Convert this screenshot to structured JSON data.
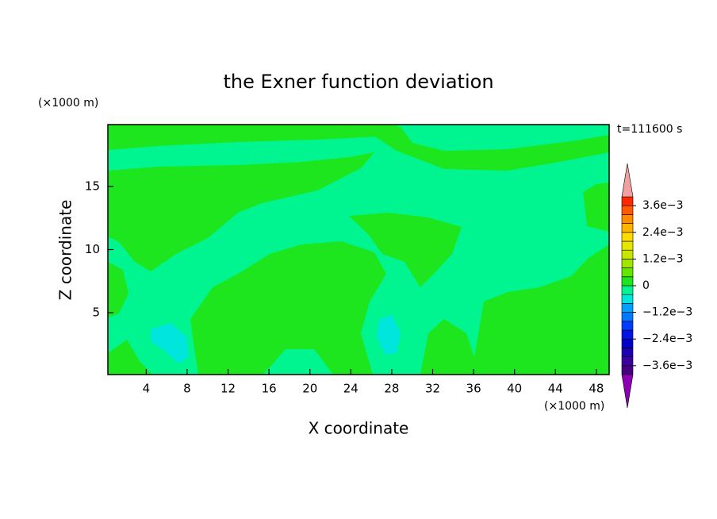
{
  "chart_data": {
    "type": "contour",
    "title": "the Exner function deviation",
    "xlabel": "X coordinate",
    "ylabel": "Z coordinate",
    "x_unit_label": "(×1000 m)",
    "y_unit_label": "(×1000 m)",
    "time_label": "t=111600 s",
    "xlim": [
      0.25,
      49.25
    ],
    "ylim": [
      0.1,
      19.9
    ],
    "xticks": [
      4,
      8,
      12,
      16,
      20,
      24,
      28,
      32,
      36,
      40,
      44,
      48
    ],
    "yticks": [
      5,
      10,
      15
    ],
    "colorbar": {
      "clim": [
        -0.004,
        0.004
      ],
      "ticks": [
        {
          "value": -0.0036,
          "label": "−3.6e−3"
        },
        {
          "value": -0.0024,
          "label": "−2.4e−3"
        },
        {
          "value": -0.0012,
          "label": "−1.2e−3"
        },
        0,
        {
          "value": 0.0012,
          "label": "1.2e−3"
        },
        {
          "value": 0.0024,
          "label": "2.4e−3"
        },
        {
          "value": 0.0036,
          "label": "3.6e−3"
        }
      ],
      "colors": [
        "#460082",
        "#3c00a0",
        "#1e00b4",
        "#0000c8",
        "#0014e6",
        "#003cff",
        "#0078ff",
        "#00a0ff",
        "#00e6dc",
        "#00f591",
        "#1ee61e",
        "#64e600",
        "#a0e600",
        "#c8e600",
        "#e6e600",
        "#ffdc00",
        "#ffb400",
        "#ff8c00",
        "#ff5a00",
        "#ff2800"
      ],
      "extend_colors": [
        "#8c00b4",
        "#f0a0a0"
      ]
    }
  }
}
